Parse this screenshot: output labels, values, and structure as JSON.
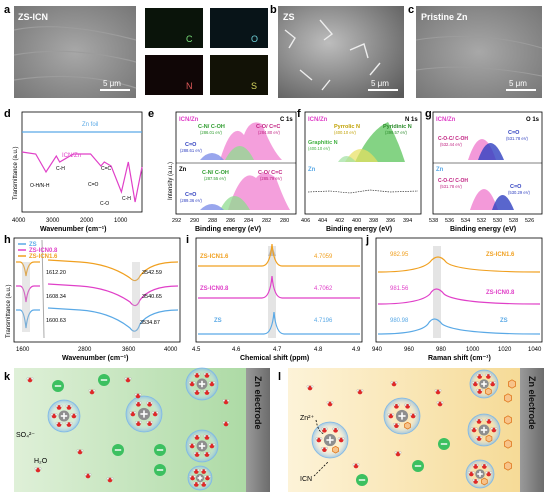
{
  "panel_letters": {
    "a": "a",
    "b": "b",
    "c": "c",
    "d": "d",
    "e": "e",
    "f": "f",
    "g": "g",
    "h": "h",
    "i": "i",
    "j": "j",
    "k": "k",
    "l": "l"
  },
  "panel_a": {
    "title": "ZS-ICN",
    "scale": "5 μm",
    "maps": [
      {
        "label": "C",
        "color": "#7be07b"
      },
      {
        "label": "O",
        "color": "#6fd0d8"
      },
      {
        "label": "N",
        "color": "#e05a5a"
      },
      {
        "label": "S",
        "color": "#d8d860"
      }
    ]
  },
  "panel_b": {
    "title": "ZS",
    "scale": "5 μm"
  },
  "panel_c": {
    "title": "Pristine Zn",
    "scale": "5 μm"
  },
  "panel_d": {
    "xlabel": "Wavenumber (cm⁻¹)",
    "ylabel": "Transmittance (a.u.)",
    "xticks": [
      "4000",
      "3000",
      "2000",
      "1000"
    ],
    "series_labels": [
      "Zn foil",
      "ICN/Zn"
    ],
    "annotations": [
      "O-H/N-H",
      "C-H",
      "C=O",
      "C=C",
      "C-O",
      "C-H"
    ],
    "chart_data": {
      "type": "line",
      "xlim": [
        4000,
        500
      ],
      "series": [
        {
          "name": "Zn foil",
          "color": "#5aa9e6",
          "x": [
            4000,
            3500,
            3000,
            2500,
            2000,
            1500,
            1000,
            500
          ],
          "y": [
            0.8,
            0.8,
            0.8,
            0.8,
            0.8,
            0.8,
            0.8,
            0.8
          ]
        },
        {
          "name": "ICN/Zn",
          "color": "#e040c8",
          "x": [
            4000,
            3600,
            3300,
            3000,
            2900,
            2500,
            2000,
            1700,
            1600,
            1400,
            1100,
            900,
            700,
            500
          ],
          "y": [
            0.6,
            0.58,
            0.4,
            0.56,
            0.5,
            0.58,
            0.58,
            0.46,
            0.5,
            0.46,
            0.2,
            0.5,
            0.1,
            0.45
          ]
        }
      ]
    }
  },
  "panel_e": {
    "tag": "ICN/Zn",
    "edge": "C 1s",
    "xlabel": "Binding energy (eV)",
    "ylabel": "Intensity (a.u.)",
    "xticks": [
      "292",
      "290",
      "288",
      "286",
      "284",
      "282",
      "280"
    ],
    "sub": "Zn",
    "top_peaks": [
      {
        "name": "C=O",
        "value": "(288.61 eV)"
      },
      {
        "name": "C-N/ C-OH",
        "value": "(286.01 eV)"
      },
      {
        "name": "C-O/ C=C",
        "value": "(284.80 eV)"
      }
    ],
    "bot_peaks": [
      {
        "name": "C=O",
        "value": "(289.36 eV)"
      },
      {
        "name": "C-N/ C-OH",
        "value": "(287.55 eV)"
      },
      {
        "name": "C-O/ C=C",
        "value": "(285.79 eV)"
      }
    ]
  },
  "panel_f": {
    "tag": "ICN/Zn",
    "edge": "N 1s",
    "xlabel": "Binding energy (eV)",
    "xticks": [
      "406",
      "404",
      "402",
      "400",
      "398",
      "396",
      "394"
    ],
    "sub": "Zn",
    "peaks": [
      {
        "name": "Pyrrolic N",
        "value": "(400.10 eV)"
      },
      {
        "name": "Pyridinic N",
        "value": "(399.57 eV)"
      },
      {
        "name": "Graphitic N",
        "value": "(400.10 eV)"
      }
    ]
  },
  "panel_g": {
    "tag": "ICN/Zn",
    "edge": "O 1s",
    "xlabel": "Binding energy (eV)",
    "xticks": [
      "538",
      "536",
      "534",
      "532",
      "530",
      "528",
      "526"
    ],
    "sub": "Zn",
    "top_peaks": [
      {
        "name": "C-O-C/ C-OH",
        "value": "(532.44 eV)"
      },
      {
        "name": "C=O",
        "value": "(531.78 eV)"
      }
    ],
    "bot_peaks": [
      {
        "name": "C-O-C/ C-OH",
        "value": "(531.78 eV)"
      },
      {
        "name": "C=O",
        "value": "(530.29 eV)"
      }
    ]
  },
  "panel_h": {
    "xlabel": "Wavenumber (cm⁻¹)",
    "ylabel": "Transmittance (a.u.)",
    "xticks": [
      "1600",
      "2800",
      "3600",
      "4000"
    ],
    "legend": [
      {
        "name": "ZS",
        "color": "#5aa9e6"
      },
      {
        "name": "ZS-ICN0.8",
        "color": "#e040c8"
      },
      {
        "name": "ZS-ICN1.6",
        "color": "#f0a020"
      }
    ],
    "left_labels": [
      "1612.20",
      "1608.34",
      "1600.63"
    ],
    "right_labels": [
      "3542.59",
      "3540.65",
      "3534.87"
    ]
  },
  "panel_i": {
    "xlabel": "Chemical shift (ppm)",
    "xticks": [
      "4.5",
      "4.6",
      "4.7",
      "4.8",
      "4.9"
    ],
    "series": [
      {
        "name": "ZS-ICN1.6",
        "value": "4.7059",
        "color": "#f0a020"
      },
      {
        "name": "ZS-ICN0.8",
        "value": "4.7062",
        "color": "#e040c8"
      },
      {
        "name": "ZS",
        "value": "4.7196",
        "color": "#5aa9e6"
      }
    ]
  },
  "panel_j": {
    "xlabel": "Raman shift (cm⁻¹)",
    "xticks": [
      "940",
      "960",
      "980",
      "1000",
      "1020",
      "1040"
    ],
    "series": [
      {
        "name": "ZS-ICN1.6",
        "value": "982.95",
        "color": "#f0a020"
      },
      {
        "name": "ZS-ICN0.8",
        "value": "981.56",
        "color": "#e040c8"
      },
      {
        "name": "ZS",
        "value": "980.98",
        "color": "#5aa9e6"
      }
    ]
  },
  "panel_k": {
    "electrode": "Zn electrode",
    "ion_label": "SO₄²⁻",
    "water_label": "H₂O"
  },
  "panel_l": {
    "electrode": "Zn electrode",
    "zn_label": "Zn²⁺",
    "icn_label": "ICN"
  }
}
